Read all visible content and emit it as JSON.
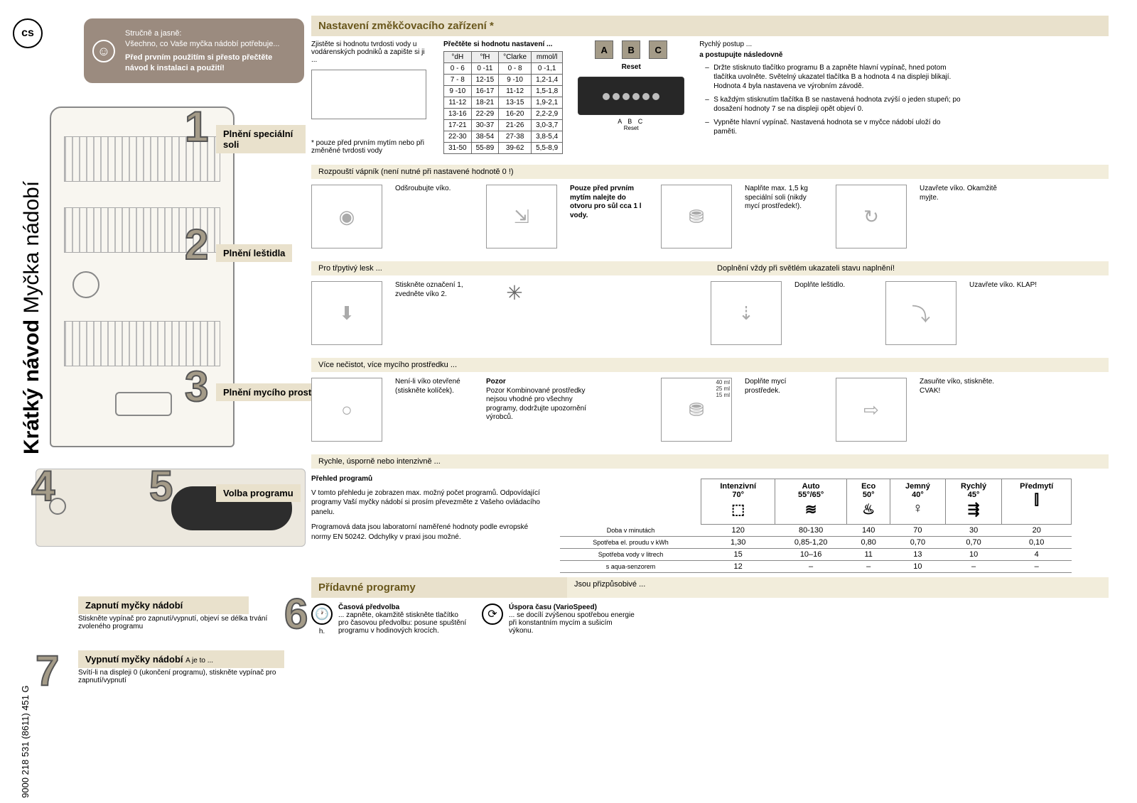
{
  "lang_code": "cs",
  "side_title_bold": "Krátký návod",
  "side_title_rest": " Myčka nádobí",
  "doc_code": "9000 218 531 (8611) 451 G",
  "intro": {
    "l1": "Stručně a jasně:",
    "l2": "Všechno, co Vaše myčka nádobí potřebuje...",
    "l3": "Před prvním použitím si přesto přečtěte návod k instalaci a použití!"
  },
  "softener": {
    "title": "Nastavení změkčovacího zařízení *",
    "title_color": "#69571c",
    "note1": "Zjistěte si hodnotu tvrdosti vody u vodárenských podniků a zapište si ji ...",
    "note2": "* pouze před prvním mytím nebo při změněné tvrdosti vody",
    "table_title": "Přečtěte si hodnotu nastavení ...",
    "headers": [
      "°dH",
      "°fH",
      "°Clarke",
      "mmol/l"
    ],
    "rows": [
      [
        "0 - 6",
        "0 -11",
        "0 - 8",
        "0 -1,1"
      ],
      [
        "7 - 8",
        "12-15",
        "9 -10",
        "1,2-1,4"
      ],
      [
        "9 -10",
        "16-17",
        "11-12",
        "1,5-1,8"
      ],
      [
        "11-12",
        "18-21",
        "13-15",
        "1,9-2,1"
      ],
      [
        "13-16",
        "22-29",
        "16-20",
        "2,2-2,9"
      ],
      [
        "17-21",
        "30-37",
        "21-26",
        "3,0-3,7"
      ],
      [
        "22-30",
        "38-54",
        "27-38",
        "3,8-5,4"
      ],
      [
        "31-50",
        "55-89",
        "39-62",
        "5,5-8,9"
      ]
    ],
    "reset_btns": [
      "A",
      "B",
      "C"
    ],
    "reset_label": "Reset",
    "quick_title": "Rychlý postup ...",
    "quick_sub": "a postupujte následovně",
    "quick_items": [
      "Držte stisknuto tlačítko programu B a zapněte hlavní vypínač, hned potom tlačítka uvolněte. Světelný ukazatel tlačítka B a hodnota 4 na displeji blikají. Hodnota 4 byla nastavena ve výrobním závodě.",
      "S každým stisknutím tlačítka B se nastavená hodnota zvýší o jeden stupeň; po dosažení hodnoty 7 se na displeji opět objeví 0.",
      "Vypněte hlavní vypínač. Nastavená hodnota se v myčce nádobí uloží do paměti."
    ]
  },
  "steps": [
    {
      "n": "1",
      "label": "Plnění speciální soli",
      "sub": "Rozpouští vápník (není nutné při nastavené hodnotě 0 !)",
      "caps": [
        "Odšroubujte víko.",
        "Pouze před prvním mytím nalejte do otvoru pro sůl cca 1 l vody.",
        "Naplňte max. 1,5 kg speciální soli (nikdy mycí prostředek!).",
        "Uzavřete víko. Okamžitě myjte."
      ]
    },
    {
      "n": "2",
      "label": "Plnění leštidla",
      "sub": "Pro třpytivý lesk ...",
      "sub2": "Doplnění vždy při světlém ukazateli stavu naplnění!",
      "caps": [
        "Stiskněte označení 1, zvedněte víko 2.",
        "Doplňte leštidlo.",
        "Uzavřete víko. KLAP!"
      ]
    },
    {
      "n": "3",
      "label": "Plnění mycího prostředku",
      "sub": "Více nečistot, více mycího prostředku ...",
      "caps": [
        "Není-li víko otevřené (stiskněte kolíček).",
        "Pozor Kombinované prostředky nejsou vhodné pro všechny programy, dodržujte upozornění výrobců.",
        "Doplňte mycí prostředek.",
        "Zasuňte víko, stiskněte. CVAK!"
      ],
      "ml": [
        "40 ml",
        "25 ml",
        "15 ml"
      ]
    },
    {
      "n": "5",
      "label": "Volba programu",
      "sub": "Rychle, úsporně nebo intenzivně ..."
    }
  ],
  "step4": {
    "n": "4",
    "label": "Zapnutí myčky nádobí",
    "text": "Stiskněte vypínač pro zapnutí/vypnutí, objeví se délka trvání zvoleného programu"
  },
  "step6": {
    "n": "6",
    "label": "Přídavné programy",
    "sub": "Jsou přizpůsobivé ..."
  },
  "step7": {
    "n": "7",
    "label": "Vypnutí myčky nádobí",
    "extra": "A je to ...",
    "text": "Svítí-li na displeji 0 (ukončení programu), stiskněte vypínač pro zapnutí/vypnutí"
  },
  "programs": {
    "title": "Přehled programů",
    "desc1": "V tomto přehledu je zobrazen max. možný počet programů. Odpovídající programy Vaší myčky nádobí si prosím převezměte z Vašeho ovládacího panelu.",
    "desc2": "Programová data jsou laboratorní naměřené hodnoty podle evropské normy EN 50242. Odchylky v praxi jsou možné.",
    "cols": [
      {
        "name": "Intenzivní",
        "temp": "70°",
        "icon": "⬚"
      },
      {
        "name": "Auto",
        "temp": "55°/65°",
        "icon": "≋"
      },
      {
        "name": "Eco",
        "temp": "50°",
        "icon": "♨"
      },
      {
        "name": "Jemný",
        "temp": "40°",
        "icon": "♀"
      },
      {
        "name": "Rychlý",
        "temp": "45°",
        "icon": "⇶"
      },
      {
        "name": "Předmytí",
        "temp": "",
        "icon": "⫿"
      }
    ],
    "row_labels": [
      "Doba v minutách",
      "Spotřeba el. proudu v kWh",
      "Spotřeba vody v litrech",
      "s aqua-senzorem"
    ],
    "rows": [
      [
        "120",
        "80-130",
        "140",
        "70",
        "30",
        "20"
      ],
      [
        "1,30",
        "0,85-1,20",
        "0,80",
        "0,70",
        "0,70",
        "0,10"
      ],
      [
        "15",
        "10–16",
        "11",
        "13",
        "10",
        "4"
      ],
      [
        "12",
        "–",
        "–",
        "10",
        "–",
        "–"
      ]
    ]
  },
  "addl": {
    "t1": "Časová předvolba",
    "d1": "... zapněte, okamžitě stiskněte tlačítko pro časovou předvolbu: posune spuštění programu v hodinových krocích.",
    "h": "h.",
    "t2": "Úspora času (VarioSpeed)",
    "d2": "... se docílí zvýšenou spotřebou energie při konstantním mycím a sušicím výkonu."
  },
  "colors": {
    "beige": "#e9e1cc",
    "beige_light": "#f2eddb",
    "olive": "#69571c",
    "taupe": "#a49b88",
    "intro_bg": "#9b8b7f"
  }
}
